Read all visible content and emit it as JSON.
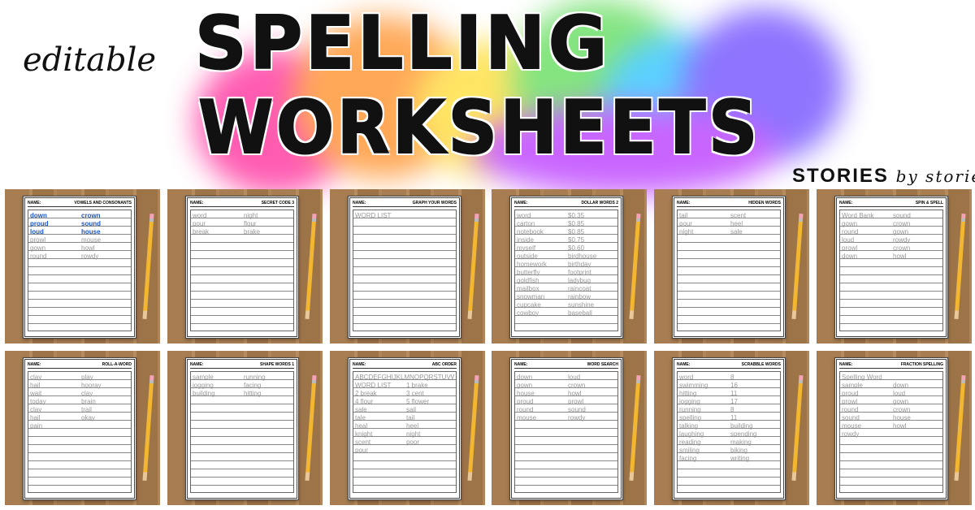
{
  "header": {
    "prefix": "editable",
    "title_line1": "SPELLING",
    "title_line2": "WORKSHEETS",
    "brand": "STORIES",
    "brand_script": "by storie"
  },
  "colors": {
    "splash": [
      "#ff3fa4",
      "#ff9a3c",
      "#ffe14a",
      "#6fe06a",
      "#3fc9ff",
      "#7b5cff",
      "#c04bff"
    ],
    "wood": "#a77d51"
  },
  "name_label": "NAME:",
  "worksheets": [
    {
      "title": "VOWELS AND CONSONANTS",
      "words": [
        "down",
        "crown",
        "proud",
        "sound",
        "loud",
        "house",
        "prowl",
        "mouse",
        "gown",
        "howl",
        "round",
        "rowdy"
      ]
    },
    {
      "title": "SECRET CODE 3",
      "words": [
        "word",
        "night",
        "pour",
        "flour",
        "break",
        "brake"
      ]
    },
    {
      "title": "GRAPH YOUR WORDS",
      "words": [
        "WORD LIST"
      ]
    },
    {
      "title": "DOLLAR WORDS 2",
      "words": [
        "word",
        "$0.35",
        "carton",
        "$0.85",
        "notebook",
        "$0.85",
        "inside",
        "$0.75",
        "myself",
        "$0.60",
        "outside",
        "birdhouse",
        "homework",
        "birthday",
        "butterfly",
        "footprint",
        "goldfish",
        "ladybug",
        "mailbox",
        "raincoat",
        "snowman",
        "rainbow",
        "cupcake",
        "sunshine",
        "cowboy",
        "baseball"
      ]
    },
    {
      "title": "HIDDEN WORDS",
      "words": [
        "tail",
        "scent",
        "pour",
        "heel",
        "night",
        "sale"
      ]
    },
    {
      "title": "SPIN & SPELL",
      "words": [
        "Word Bank",
        "sound",
        "gown",
        "crown",
        "round",
        "gown",
        "loud",
        "rowdy",
        "prowl",
        "crown",
        "down",
        "howl"
      ]
    },
    {
      "title": "ROLL-A-WORD",
      "words": [
        "clay",
        "play",
        "hail",
        "hooray",
        "wait",
        "clay",
        "today",
        "brain",
        "clay",
        "trail",
        "hail",
        "okay",
        "pain"
      ]
    },
    {
      "title": "SHAPE WORDS 1",
      "words": [
        "sample",
        "running",
        "jogging",
        "facing",
        "building",
        "hitting"
      ]
    },
    {
      "title": "ABC ORDER",
      "words": [
        "ABCDEFGHIJKLMNOPQRSTUVWXYZ",
        "WORD LIST",
        "1 brake",
        "2 break",
        "3 cent",
        "4 flour",
        "5 flower",
        "sale",
        "sail",
        "tale",
        "tail",
        "heal",
        "heel",
        "knight",
        "night",
        "scent",
        "poor",
        "pour"
      ]
    },
    {
      "title": "WORD SEARCH",
      "words": [
        "down",
        "loud",
        "gown",
        "crown",
        "house",
        "howl",
        "proud",
        "prowl",
        "round",
        "sound",
        "mouse",
        "rowdy"
      ]
    },
    {
      "title": "SCRABBLE WORDS",
      "words": [
        "word",
        "8",
        "swimming",
        "16",
        "hitting",
        "11",
        "jogging",
        "17",
        "running",
        "8",
        "spelling",
        "11",
        "talking",
        "building",
        "laughing",
        "spending",
        "reading",
        "making",
        "smiling",
        "biking",
        "facing",
        "writing"
      ]
    },
    {
      "title": "FRACTION SPELLING",
      "words": [
        "Spelling Word",
        "sample",
        "down",
        "proud",
        "loud",
        "prowl",
        "gown",
        "round",
        "crown",
        "sound",
        "house",
        "mouse",
        "howl",
        "rowdy"
      ]
    }
  ]
}
